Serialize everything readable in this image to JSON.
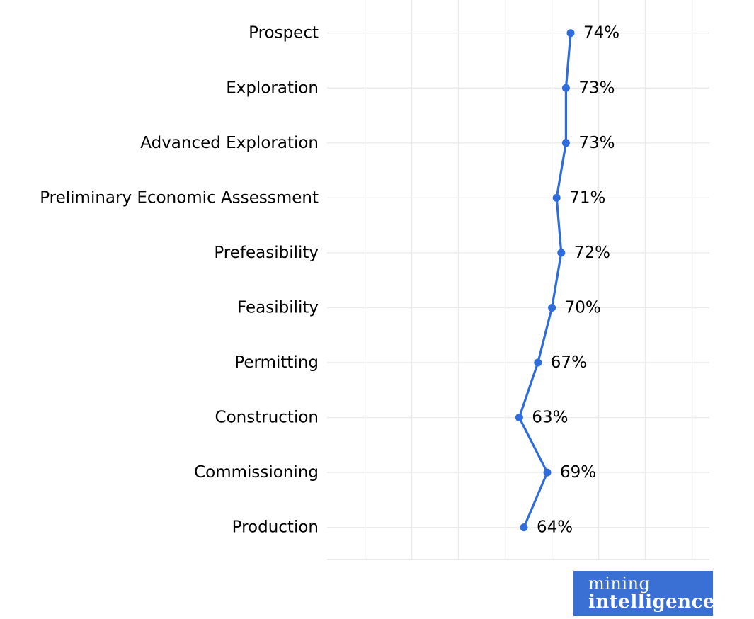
{
  "chart_data": {
    "type": "line",
    "orientation": "horizontal-categories",
    "title": "",
    "xlabel": "",
    "ylabel": "",
    "categories": [
      "Prospect",
      "Exploration",
      "Advanced Exploration",
      "Preliminary Economic Assessment",
      "Prefeasibility",
      "Feasibility",
      "Permitting",
      "Construction",
      "Commissioning",
      "Production"
    ],
    "values": [
      74,
      73,
      73,
      71,
      72,
      70,
      67,
      63,
      69,
      64
    ],
    "value_labels": [
      "74%",
      "73%",
      "73%",
      "71%",
      "72%",
      "70%",
      "67%",
      "63%",
      "69%",
      "64%"
    ],
    "value_unit": "%",
    "xlim": [
      22,
      104
    ],
    "grid": true,
    "grid_x_percents": [
      30,
      40,
      50,
      60,
      70,
      80,
      90,
      100
    ],
    "legend": "none",
    "marker": "circle"
  },
  "colors": {
    "line": "#2E6CDB",
    "marker": "#2E6CDB",
    "grid": "#EBEBEB",
    "axis_line": "#E3E3E3",
    "label_text": "#000000",
    "logo_bg": "#3A6FD3",
    "logo_text": "#FFFFFF"
  },
  "logo": {
    "line1": "mining",
    "line2": "intelligence"
  }
}
